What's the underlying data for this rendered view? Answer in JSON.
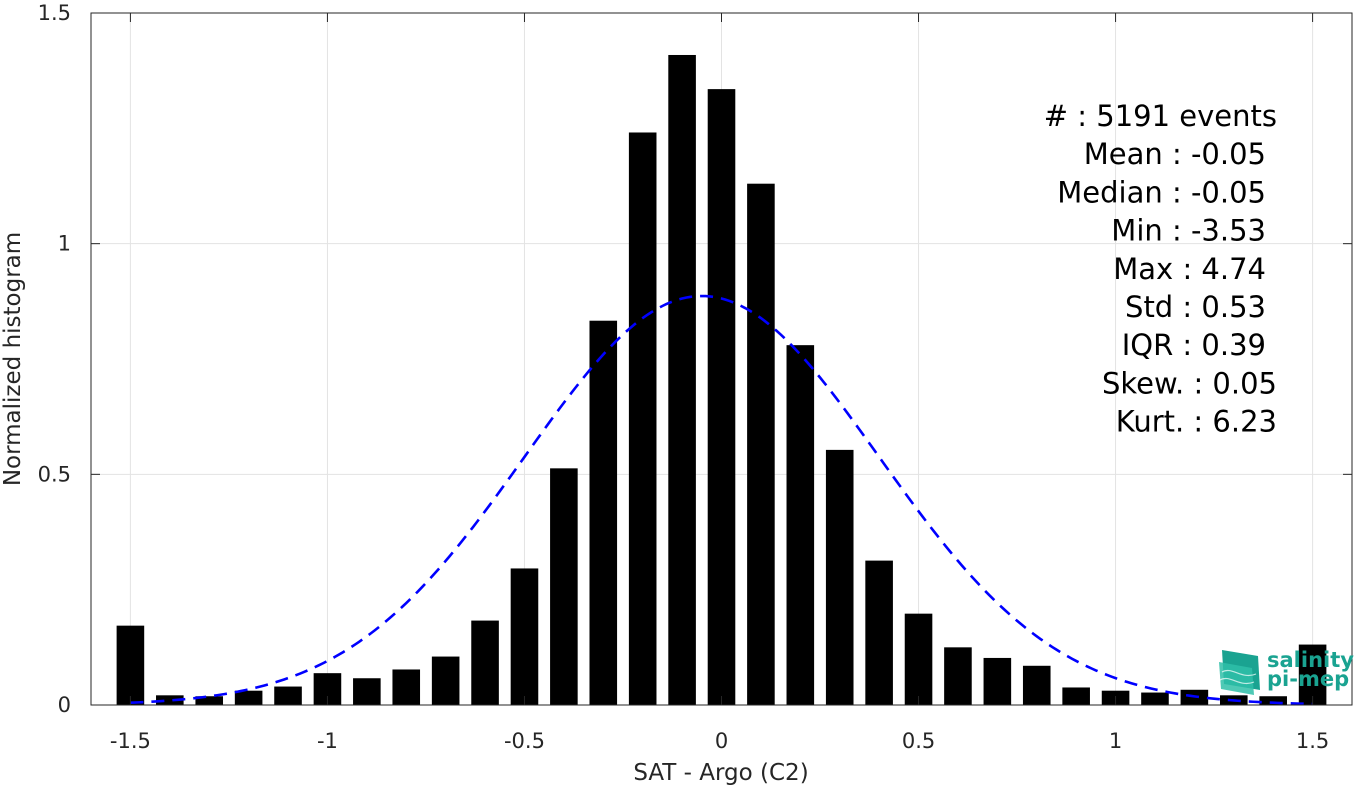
{
  "chart_data": {
    "type": "bar",
    "xlabel": "SAT - Argo (C2)",
    "ylabel": "Normalized histogram",
    "xlim": [
      -1.6,
      1.6
    ],
    "ylim": [
      0,
      1.5
    ],
    "xticks": [
      -1.5,
      -1,
      -0.5,
      0,
      0.5,
      1,
      1.5
    ],
    "xtick_labels": [
      "-1.5",
      "-1",
      "-0.5",
      "0",
      "0.5",
      "1",
      "1.5"
    ],
    "yticks": [
      0,
      0.5,
      1,
      1.5
    ],
    "ytick_labels": [
      "0",
      "0.5",
      "1",
      "1.5"
    ],
    "grid": true,
    "bar_color": "#000000",
    "bar_width": 0.07,
    "x": [
      -1.5,
      -1.4,
      -1.3,
      -1.2,
      -1.1,
      -1.0,
      -0.9,
      -0.8,
      -0.7,
      -0.6,
      -0.5,
      -0.4,
      -0.3,
      -0.2,
      -0.1,
      0.0,
      0.1,
      0.2,
      0.3,
      0.4,
      0.5,
      0.6,
      0.7,
      0.8,
      0.9,
      1.0,
      1.1,
      1.2,
      1.3,
      1.4,
      1.5
    ],
    "values": [
      0.172,
      0.021,
      0.019,
      0.031,
      0.04,
      0.069,
      0.058,
      0.077,
      0.105,
      0.183,
      0.296,
      0.513,
      0.833,
      1.241,
      1.409,
      1.335,
      1.13,
      0.78,
      0.553,
      0.313,
      0.198,
      0.125,
      0.102,
      0.085,
      0.038,
      0.031,
      0.027,
      0.033,
      0.021,
      0.019,
      0.131
    ],
    "fit_curve": {
      "type": "normal",
      "mean": -0.05,
      "std": 0.45,
      "color": "#0000ff",
      "style": "dashed"
    },
    "annotation": [
      "#  : 5191 events",
      "Mean : -0.05",
      "Median : -0.05",
      "Min : -3.53",
      "Max : 4.74",
      "Std : 0.53",
      "IQR : 0.39",
      "Skew. : 0.05",
      "Kurt. : 6.23"
    ]
  },
  "logo": {
    "line1": "salinity",
    "line2": "pi-mep"
  }
}
